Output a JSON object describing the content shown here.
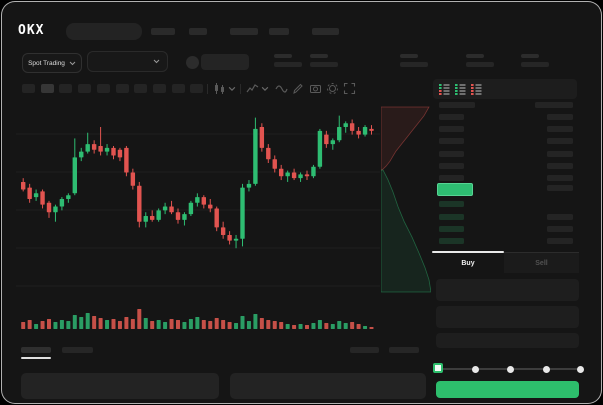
{
  "brand": {
    "logo": "OKX"
  },
  "header": {
    "nav_placeholder_count": 5,
    "search_bar": {
      "value": ""
    }
  },
  "market_bar": {
    "market_selector": {
      "label": "Spot Trading"
    },
    "pair_selector": {
      "value": ""
    },
    "stat_placeholder_count": 5
  },
  "chart_toolbar": {
    "timeframe_count": 10,
    "active_timeframe_index": 1,
    "tools": [
      "candle-style",
      "indicators",
      "line-tool",
      "draw-tool",
      "snapshot",
      "settings",
      "fullscreen"
    ]
  },
  "order_book": {
    "view_modes": [
      "book-combined",
      "book-bids",
      "book-asks"
    ],
    "ask_row_count": 6,
    "bid_row_count": 4,
    "last_price_trend": "up"
  },
  "trade_panel": {
    "tabs": [
      {
        "label": "Buy",
        "active": true
      },
      {
        "label": "Sell",
        "active": false
      }
    ],
    "field_count": 3,
    "slider": {
      "stop_count": 5,
      "value_index": 0
    },
    "submit_style": "buy"
  },
  "bottom_bar": {
    "left_tab_count": 2,
    "active_left_tab": 0,
    "right_tab_count": 2,
    "panel_count": 2
  },
  "colors": {
    "up": "#2ebd72",
    "down": "#e25450",
    "volume_up": "#2a9d64",
    "volume_down": "#c65048",
    "buy_button": "#2dbe6c",
    "price_highlight": "#2ebd72",
    "window_bg": "#151515",
    "grid": "#1e1e1e"
  },
  "chart_data": {
    "type": "candlestick",
    "note": "no axis labels visible; prices in relative units",
    "ylim": [
      0,
      100
    ],
    "candles": [
      [
        57,
        59,
        52,
        53
      ],
      [
        54,
        56,
        46,
        48
      ],
      [
        49,
        53,
        47,
        51
      ],
      [
        52,
        53,
        43,
        45
      ],
      [
        46,
        47,
        38,
        41
      ],
      [
        41,
        45,
        36,
        44
      ],
      [
        44,
        49,
        42,
        48
      ],
      [
        48,
        51,
        46,
        50
      ],
      [
        51,
        80,
        50,
        70
      ],
      [
        70,
        75,
        68,
        73
      ],
      [
        73,
        83,
        72,
        77
      ],
      [
        77,
        79,
        72,
        74
      ],
      [
        76,
        86,
        71,
        73
      ],
      [
        73,
        77,
        71,
        75
      ],
      [
        75,
        76,
        69,
        71
      ],
      [
        74,
        75,
        68,
        70
      ],
      [
        75,
        76,
        60,
        62
      ],
      [
        62,
        64,
        53,
        55
      ],
      [
        55,
        57,
        33,
        36
      ],
      [
        36,
        41,
        33,
        39
      ],
      [
        39,
        42,
        36,
        37
      ],
      [
        37,
        43,
        36,
        42
      ],
      [
        42,
        46,
        40,
        44
      ],
      [
        44,
        47,
        40,
        41
      ],
      [
        41,
        43,
        35,
        37
      ],
      [
        37,
        41,
        34,
        40
      ],
      [
        40,
        47,
        39,
        46
      ],
      [
        46,
        51,
        44,
        49
      ],
      [
        49,
        50,
        43,
        45
      ],
      [
        45,
        48,
        41,
        43
      ],
      [
        43,
        44,
        31,
        33
      ],
      [
        33,
        36,
        27,
        29
      ],
      [
        29,
        31,
        24,
        26
      ],
      [
        26,
        29,
        22,
        27
      ],
      [
        27,
        56,
        23,
        54
      ],
      [
        54,
        58,
        52,
        56
      ],
      [
        56,
        91,
        55,
        85
      ],
      [
        86,
        88,
        73,
        75
      ],
      [
        75,
        77,
        67,
        69
      ],
      [
        69,
        71,
        62,
        64
      ],
      [
        64,
        66,
        58,
        60
      ],
      [
        60,
        63,
        57,
        62
      ],
      [
        62,
        64,
        58,
        59
      ],
      [
        59,
        62,
        57,
        61
      ],
      [
        61,
        63,
        58,
        60
      ],
      [
        60,
        66,
        59,
        65
      ],
      [
        65,
        85,
        64,
        84
      ],
      [
        82,
        84,
        75,
        77
      ],
      [
        77,
        80,
        74,
        79
      ],
      [
        79,
        92,
        78,
        86
      ],
      [
        86,
        89,
        83,
        88
      ],
      [
        88,
        90,
        82,
        84
      ],
      [
        84,
        86,
        80,
        82
      ],
      [
        82,
        87,
        81,
        86
      ],
      [
        85,
        87,
        82,
        84
      ]
    ],
    "volume": [
      35,
      45,
      25,
      40,
      50,
      35,
      45,
      40,
      70,
      60,
      80,
      65,
      55,
      45,
      50,
      40,
      60,
      50,
      100,
      55,
      40,
      45,
      35,
      50,
      45,
      35,
      50,
      60,
      45,
      40,
      55,
      45,
      35,
      30,
      65,
      40,
      75,
      55,
      45,
      40,
      35,
      25,
      20,
      25,
      20,
      30,
      45,
      30,
      25,
      40,
      30,
      35,
      25,
      15,
      10
    ],
    "depth": {
      "asks": [
        [
          0,
          1
        ],
        [
          0.06,
          5
        ],
        [
          0.14,
          9
        ],
        [
          0.22,
          12
        ],
        [
          0.3,
          15
        ],
        [
          0.42,
          21
        ],
        [
          0.52,
          26
        ],
        [
          0.62,
          31
        ],
        [
          0.74,
          37
        ],
        [
          0.86,
          43
        ],
        [
          1,
          48
        ]
      ],
      "bids": [
        [
          0,
          2
        ],
        [
          0.08,
          7
        ],
        [
          0.18,
          12
        ],
        [
          0.3,
          17
        ],
        [
          0.42,
          23
        ],
        [
          0.55,
          31
        ],
        [
          0.68,
          38
        ],
        [
          0.8,
          44
        ],
        [
          0.9,
          48
        ],
        [
          1,
          50
        ]
      ]
    }
  }
}
